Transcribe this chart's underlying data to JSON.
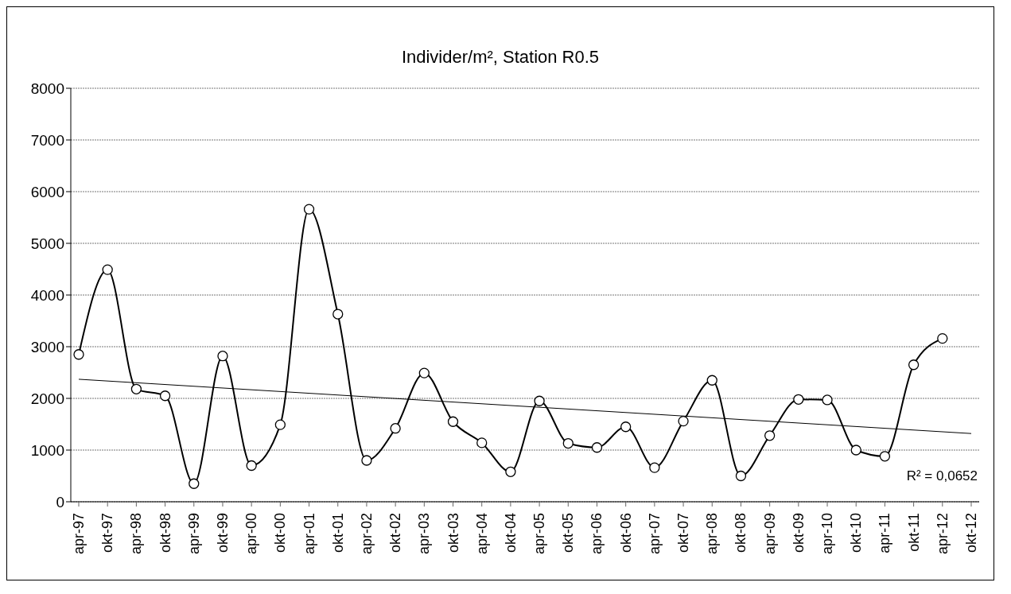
{
  "chart_data": {
    "type": "line",
    "title": "Individer/m², Station R0.5",
    "categories": [
      "apr-97",
      "okt-97",
      "apr-98",
      "okt-98",
      "apr-99",
      "okt-99",
      "apr-00",
      "okt-00",
      "apr-01",
      "okt-01",
      "apr-02",
      "okt-02",
      "apr-03",
      "okt-03",
      "apr-04",
      "okt-04",
      "apr-05",
      "okt-05",
      "apr-06",
      "okt-06",
      "apr-07",
      "okt-07",
      "apr-08",
      "okt-08",
      "apr-09",
      "okt-09",
      "apr-10",
      "okt-10",
      "apr-11",
      "okt-11",
      "apr-12",
      "okt-12"
    ],
    "series": [
      {
        "color": "#000000",
        "values": [
          2850,
          4490,
          2180,
          2050,
          350,
          2820,
          700,
          1490,
          5660,
          3630,
          800,
          1420,
          2490,
          1550,
          1140,
          580,
          1950,
          1130,
          1050,
          1450,
          660,
          1560,
          2350,
          500,
          1280,
          1980,
          1970,
          1000,
          880,
          2650,
          3160,
          null
        ],
        "marker": "circle"
      },
      {
        "type": "line",
        "color": "#000000",
        "x": [
          "apr-97",
          "okt-12"
        ],
        "values": [
          2370,
          1320
        ],
        "marker": "none"
      }
    ],
    "ylim": [
      0,
      8000
    ],
    "yticks": [
      0,
      1000,
      2000,
      3000,
      4000,
      5000,
      6000,
      7000,
      8000
    ],
    "grid": "y",
    "line_style": "solid",
    "annotations": [
      "R² = 0,0652"
    ]
  }
}
